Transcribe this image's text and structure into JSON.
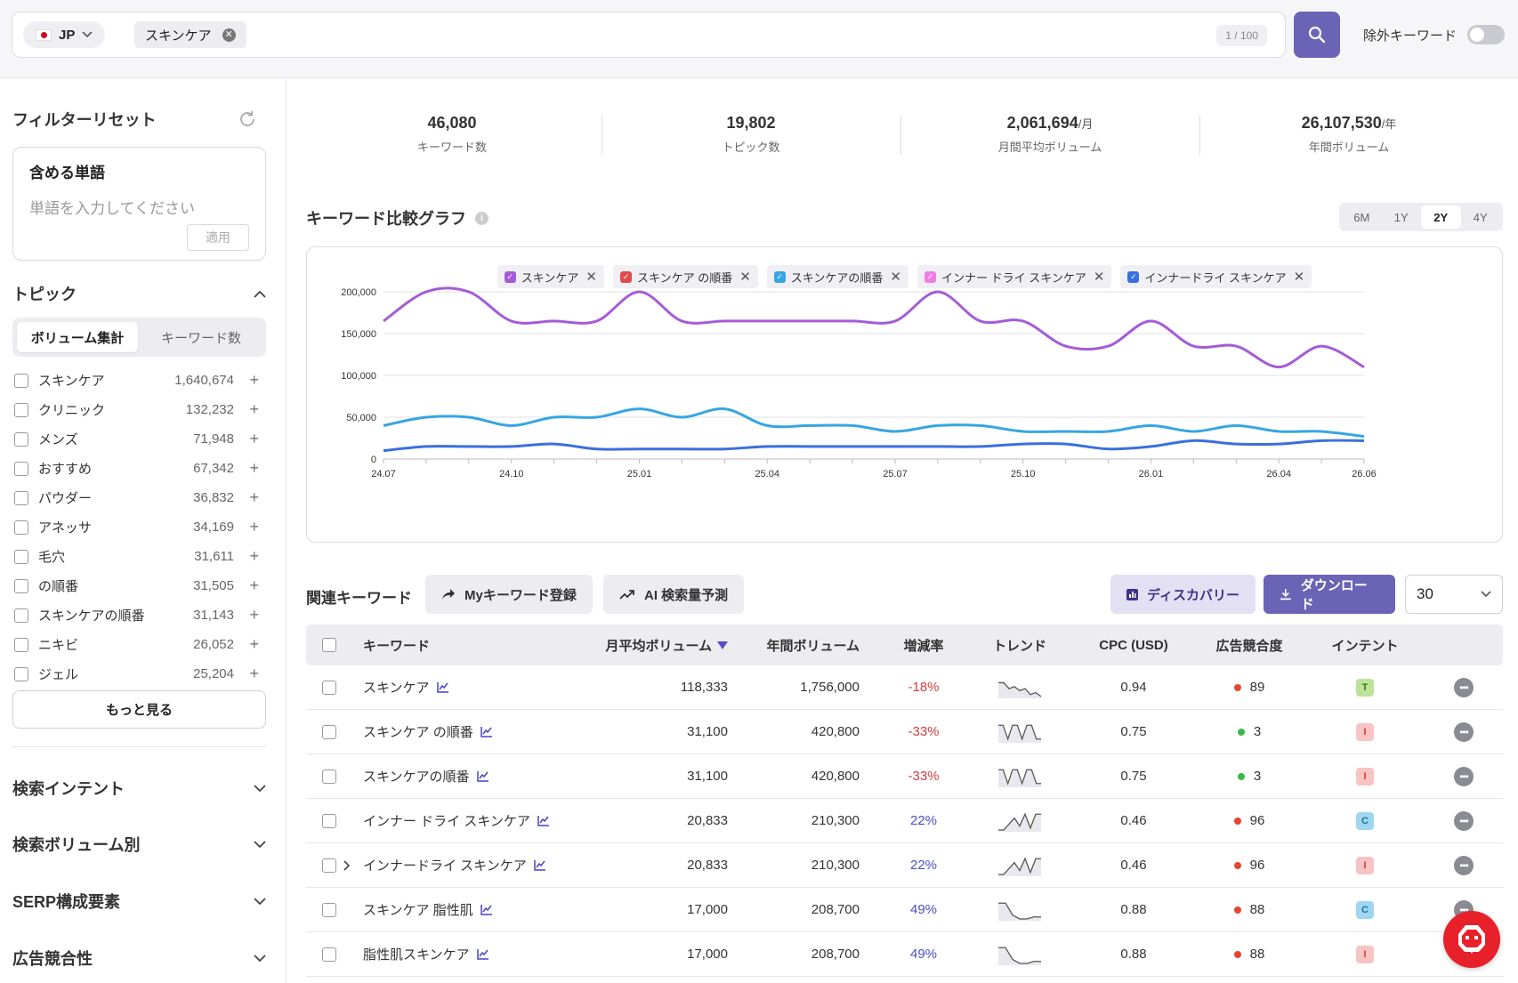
{
  "search": {
    "country": "JP",
    "keyword_chip": "スキンケア",
    "counter": "1 / 100",
    "exclude_label": "除外キーワード"
  },
  "sidebar": {
    "reset_label": "フィルターリセット",
    "include_title": "含める単語",
    "include_placeholder": "単語を入力してください",
    "apply_label": "適用",
    "topic_title": "トピック",
    "seg_volume": "ボリューム集計",
    "seg_count": "キーワード数",
    "topics": [
      {
        "name": "スキンケア",
        "count": "1,640,674"
      },
      {
        "name": "クリニック",
        "count": "132,232"
      },
      {
        "name": "メンズ",
        "count": "71,948"
      },
      {
        "name": "おすすめ",
        "count": "67,342"
      },
      {
        "name": "パウダー",
        "count": "36,832"
      },
      {
        "name": "アネッサ",
        "count": "34,169"
      },
      {
        "name": "毛穴",
        "count": "31,611"
      },
      {
        "name": "の順番",
        "count": "31,505"
      },
      {
        "name": "スキンケアの順番",
        "count": "31,143"
      },
      {
        "name": "ニキビ",
        "count": "26,052"
      },
      {
        "name": "ジェル",
        "count": "25,204"
      }
    ],
    "more_label": "もっと見る",
    "accordions": [
      "検索インテント",
      "検索ボリューム別",
      "SERP構成要素",
      "広告競合性"
    ]
  },
  "stats": [
    {
      "value": "46,080",
      "unit": "",
      "label": "キーワード数"
    },
    {
      "value": "19,802",
      "unit": "",
      "label": "トピック数"
    },
    {
      "value": "2,061,694",
      "unit": "/月",
      "label": "月間平均ボリューム"
    },
    {
      "value": "26,107,530",
      "unit": "/年",
      "label": "年間ボリューム"
    }
  ],
  "graph": {
    "title": "キーワード比較グラフ",
    "ranges": [
      "6M",
      "1Y",
      "2Y",
      "4Y"
    ],
    "active_range": "2Y",
    "legend": [
      {
        "name": "スキンケア",
        "color": "#a55bd8"
      },
      {
        "name": "スキンケア の順番",
        "color": "#e24b4b"
      },
      {
        "name": "スキンケアの順番",
        "color": "#35a6e2"
      },
      {
        "name": "インナー ドライ スキンケア",
        "color": "#f07de6"
      },
      {
        "name": "インナードライ スキンケア",
        "color": "#3a6fe0"
      }
    ]
  },
  "chart_data": {
    "type": "line",
    "x": [
      "24.07",
      "24.08",
      "24.09",
      "24.10",
      "24.11",
      "24.12",
      "25.01",
      "25.02",
      "25.03",
      "25.04",
      "25.05",
      "25.06",
      "25.07",
      "25.08",
      "25.09",
      "25.10",
      "25.11",
      "25.12",
      "26.01",
      "26.02",
      "26.03",
      "26.04",
      "26.05",
      "26.06"
    ],
    "x_tick_labels": [
      "24.07",
      "24.10",
      "25.01",
      "25.04",
      "25.07",
      "25.10",
      "26.01",
      "26.04",
      "26.06"
    ],
    "ylim": [
      0,
      200000
    ],
    "y_ticks": [
      0,
      50000,
      100000,
      150000,
      200000
    ],
    "y_tick_labels": [
      "0",
      "50,000",
      "100,000",
      "150,000",
      "200,000"
    ],
    "grid": true,
    "series": [
      {
        "name": "スキンケア",
        "color": "#a55bd8",
        "values": [
          165000,
          200000,
          200000,
          165000,
          165000,
          165000,
          200000,
          165000,
          165000,
          165000,
          165000,
          165000,
          165000,
          200000,
          165000,
          165000,
          135000,
          135000,
          165000,
          135000,
          135000,
          110000,
          135000,
          110000
        ]
      },
      {
        "name": "スキンケアの順番",
        "color": "#35a6e2",
        "values": [
          40000,
          50000,
          50000,
          40000,
          50000,
          50000,
          60000,
          50000,
          60000,
          40000,
          40000,
          40000,
          33000,
          40000,
          40000,
          33000,
          33000,
          33000,
          40000,
          33000,
          40000,
          33000,
          33000,
          27000
        ]
      },
      {
        "name": "インナードライ スキンケア",
        "color": "#3a6fe0",
        "values": [
          10000,
          15000,
          15000,
          15000,
          18000,
          12000,
          12000,
          12000,
          12000,
          15000,
          15000,
          15000,
          15000,
          15000,
          15000,
          18000,
          18000,
          12000,
          15000,
          22000,
          18000,
          18000,
          22000,
          22000
        ]
      }
    ]
  },
  "related": {
    "title": "関連キーワード",
    "my_keyword_btn": "Myキーワード登録",
    "ai_btn": "AI 検索量予測",
    "discovery_btn": "ディスカバリー",
    "download_btn": "ダウンロード",
    "page_size": "30"
  },
  "table": {
    "headers": {
      "keyword": "キーワード",
      "monthly": "月平均ボリューム",
      "yearly": "年間ボリューム",
      "growth": "増減率",
      "trend": "トレンド",
      "cpc": "CPC (USD)",
      "competition": "広告競合度",
      "intent": "インテント"
    },
    "rows": [
      {
        "keyword": "スキンケア",
        "monthly": "118,333",
        "yearly": "1,756,000",
        "growth": "-18%",
        "cpc": "0.94",
        "comp": "89",
        "comp_color": "#e8452c",
        "intent": "T",
        "intent_bg": "#bde39a",
        "intent_fg": "#3b7a12",
        "trend": [
          3,
          3,
          6,
          5,
          7,
          6,
          9,
          8,
          10
        ],
        "expand": false
      },
      {
        "keyword": "スキンケア の順番",
        "monthly": "31,100",
        "yearly": "420,800",
        "growth": "-33%",
        "cpc": "0.75",
        "comp": "3",
        "comp_color": "#3cb84a",
        "intent": "I",
        "intent_bg": "#f7c3c3",
        "intent_fg": "#d63b3b",
        "trend": [
          2,
          2,
          9,
          2,
          2,
          9,
          2,
          2,
          9,
          9
        ],
        "expand": false
      },
      {
        "keyword": "スキンケアの順番",
        "monthly": "31,100",
        "yearly": "420,800",
        "growth": "-33%",
        "cpc": "0.75",
        "comp": "3",
        "comp_color": "#3cb84a",
        "intent": "I",
        "intent_bg": "#f7c3c3",
        "intent_fg": "#d63b3b",
        "trend": [
          2,
          2,
          9,
          2,
          2,
          9,
          2,
          2,
          9,
          9
        ],
        "expand": false
      },
      {
        "keyword": "インナー ドライ スキンケア",
        "monthly": "20,833",
        "yearly": "210,300",
        "growth": "22%",
        "cpc": "0.46",
        "comp": "96",
        "comp_color": "#e8452c",
        "intent": "C",
        "intent_bg": "#9fd7f0",
        "intent_fg": "#1f6fa0",
        "trend": [
          10,
          10,
          7,
          4,
          8,
          2,
          9,
          2,
          2
        ],
        "expand": false
      },
      {
        "keyword": "インナードライ スキンケア",
        "monthly": "20,833",
        "yearly": "210,300",
        "growth": "22%",
        "cpc": "0.46",
        "comp": "96",
        "comp_color": "#e8452c",
        "intent": "I",
        "intent_bg": "#f7c3c3",
        "intent_fg": "#d63b3b",
        "trend": [
          10,
          10,
          7,
          4,
          8,
          2,
          9,
          2,
          2
        ],
        "expand": true
      },
      {
        "keyword": "スキンケア 脂性肌",
        "monthly": "17,000",
        "yearly": "208,700",
        "growth": "49%",
        "cpc": "0.88",
        "comp": "88",
        "comp_color": "#e8452c",
        "intent": "C",
        "intent_bg": "#9fd7f0",
        "intent_fg": "#1f6fa0",
        "trend": [
          2,
          2,
          8,
          10,
          10,
          9,
          9
        ],
        "expand": false
      },
      {
        "keyword": "脂性肌スキンケア",
        "monthly": "17,000",
        "yearly": "208,700",
        "growth": "49%",
        "cpc": "0.88",
        "comp": "88",
        "comp_color": "#e8452c",
        "intent": "I",
        "intent_bg": "#f7c3c3",
        "intent_fg": "#d63b3b",
        "trend": [
          2,
          2,
          8,
          10,
          10,
          9,
          9
        ],
        "expand": false
      }
    ]
  },
  "colors": {
    "accent": "#6b63b5",
    "discovery_bg": "#e3e0f4",
    "discovery_fg": "#3d3488"
  }
}
